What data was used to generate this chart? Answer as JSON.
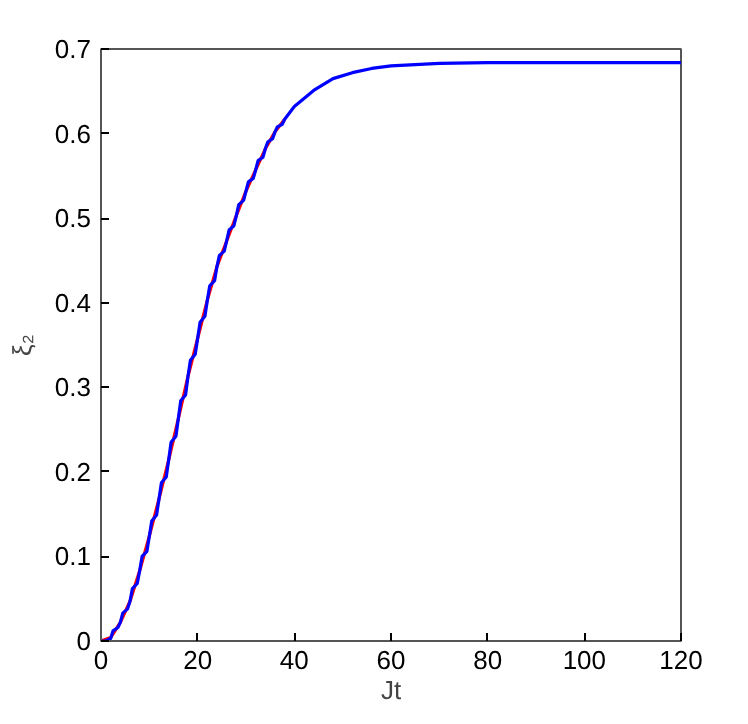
{
  "chart_data": {
    "type": "line",
    "xlabel": "Jt",
    "ylabel": "ξ₂",
    "xlim": [
      0,
      120
    ],
    "ylim": [
      0,
      0.7
    ],
    "xticks": [
      0,
      20,
      40,
      60,
      80,
      100,
      120
    ],
    "yticks": [
      0,
      0.1,
      0.2,
      0.3,
      0.4,
      0.5,
      0.6,
      0.7
    ],
    "grid": false,
    "line_style": "solid",
    "marker": "none",
    "series": [
      {
        "color": "#ff0000",
        "x": [
          0,
          2,
          4,
          6,
          8,
          10,
          12,
          14,
          16,
          18,
          20,
          22,
          24,
          26,
          28,
          30,
          32,
          34,
          36,
          38
        ],
        "values": [
          0,
          0.004,
          0.022,
          0.047,
          0.083,
          0.124,
          0.168,
          0.214,
          0.263,
          0.313,
          0.358,
          0.403,
          0.443,
          0.473,
          0.503,
          0.532,
          0.557,
          0.582,
          0.602,
          0.617
        ]
      },
      {
        "color": "#0000ff",
        "x": [
          0,
          1,
          2,
          2.5,
          3.5,
          4,
          4.5,
          5.5,
          6,
          6.5,
          7.5,
          8,
          8.5,
          9.5,
          10,
          10.5,
          11.5,
          12,
          12.5,
          13.5,
          14,
          14.5,
          15.5,
          16,
          16.5,
          17.5,
          18,
          18.5,
          19.5,
          20,
          20.5,
          21.5,
          22,
          22.5,
          23.5,
          24,
          24.5,
          25.5,
          26,
          26.5,
          27.5,
          28,
          28.5,
          29.5,
          30,
          30.5,
          31.5,
          32,
          32.5,
          33.5,
          34,
          34.5,
          35.5,
          36,
          36.5,
          37.5,
          38,
          40,
          44,
          48,
          52,
          56,
          60,
          70,
          80,
          100,
          120
        ],
        "values": [
          0,
          0,
          0.003,
          0.012,
          0.016,
          0.022,
          0.033,
          0.038,
          0.047,
          0.062,
          0.068,
          0.083,
          0.1,
          0.106,
          0.124,
          0.142,
          0.149,
          0.168,
          0.187,
          0.194,
          0.214,
          0.235,
          0.242,
          0.263,
          0.284,
          0.291,
          0.313,
          0.332,
          0.339,
          0.358,
          0.377,
          0.384,
          0.403,
          0.42,
          0.426,
          0.443,
          0.456,
          0.461,
          0.473,
          0.486,
          0.491,
          0.503,
          0.516,
          0.521,
          0.532,
          0.543,
          0.547,
          0.557,
          0.568,
          0.572,
          0.582,
          0.59,
          0.594,
          0.602,
          0.608,
          0.611,
          0.617,
          0.632,
          0.651,
          0.665,
          0.672,
          0.677,
          0.68,
          0.683,
          0.684,
          0.684,
          0.684
        ]
      }
    ]
  }
}
